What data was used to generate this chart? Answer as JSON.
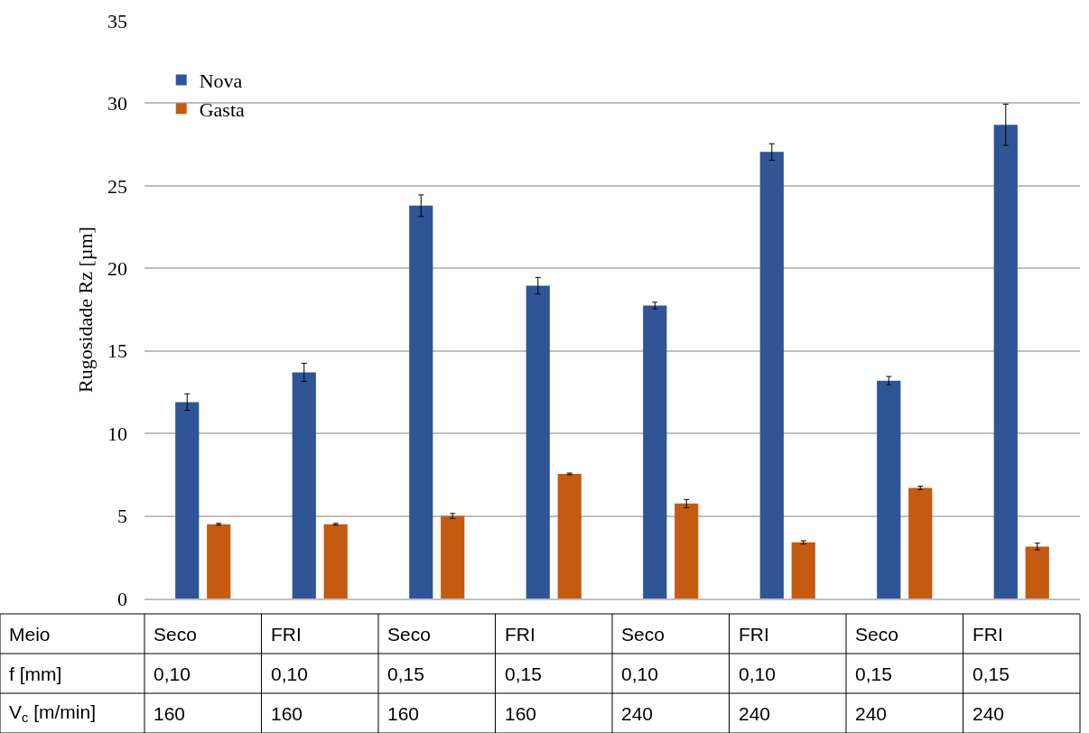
{
  "chart_data": {
    "type": "bar",
    "ylabel": "Rugosidade Rz [µm]",
    "categories": [
      "Seco\n0,10\n160",
      "FRI\n0,10\n160",
      "Seco\n0,15\n160",
      "FRI\n0,15\n160",
      "Seco\n0,10\n240",
      "FRI\n0,10\n240",
      "Seco\n0,15\n240",
      "FRI\n0,15\n240"
    ],
    "series": [
      {
        "name": "Nova",
        "color": "#2f5597",
        "values": [
          11.9,
          13.7,
          23.8,
          18.95,
          17.75,
          27.05,
          13.2,
          28.7
        ],
        "errors": [
          0.5,
          0.55,
          0.65,
          0.5,
          0.2,
          0.5,
          0.25,
          1.25
        ]
      },
      {
        "name": "Gasta",
        "color": "#c55a11",
        "values": [
          4.5,
          4.5,
          5.0,
          7.55,
          5.75,
          3.4,
          6.7,
          3.15
        ],
        "errors": [
          0.05,
          0.05,
          0.15,
          0.05,
          0.25,
          0.1,
          0.1,
          0.2
        ]
      }
    ],
    "annotations": [
      "Meio",
      "f [mm]",
      "V$_{c}$ [m/min]"
    ],
    "ylim": [
      0,
      35
    ],
    "yticks": [
      0,
      5,
      10,
      15,
      20,
      25,
      30,
      35
    ],
    "grid": "y",
    "legend": "top left"
  }
}
